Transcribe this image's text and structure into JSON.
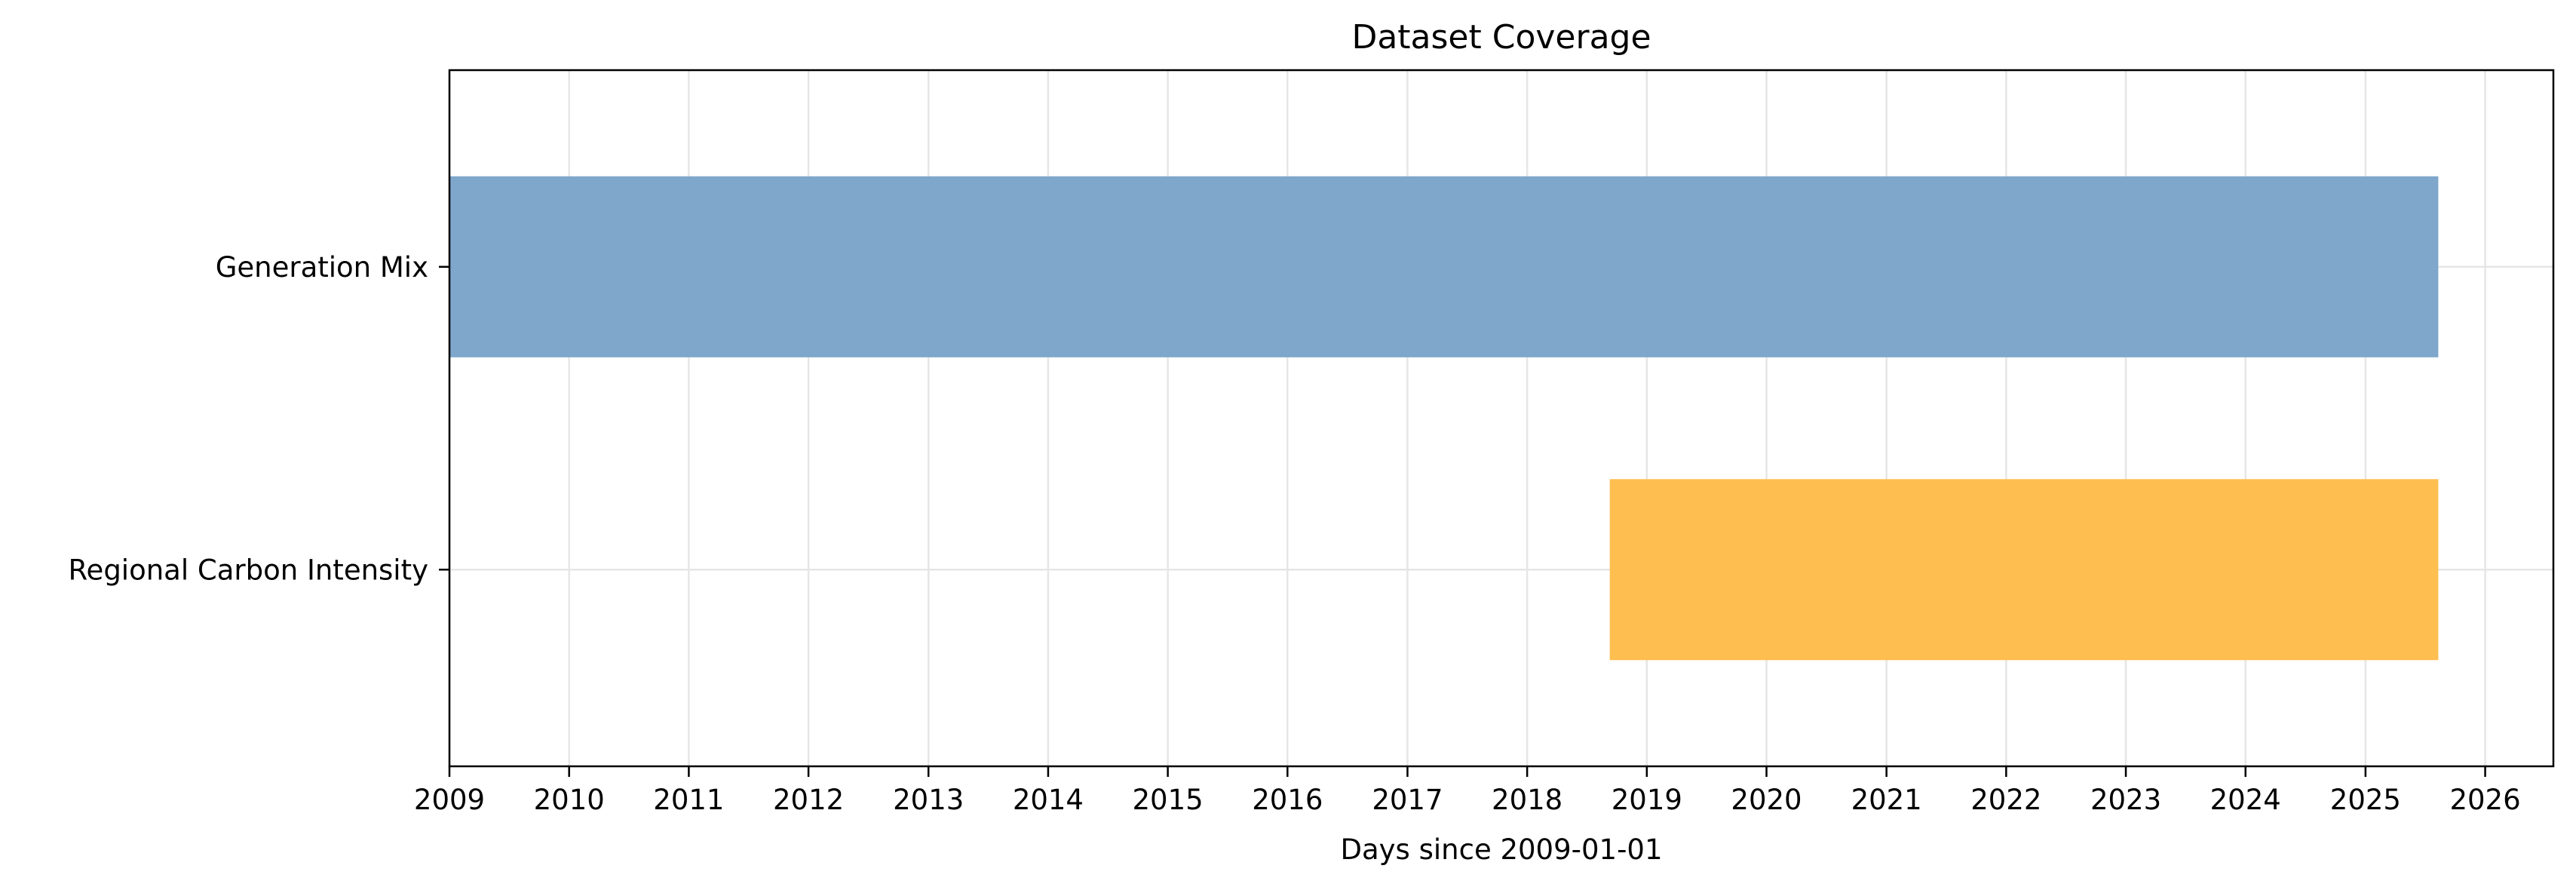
{
  "chart_data": {
    "type": "bar",
    "orientation": "horizontal",
    "title": "Dataset Coverage",
    "xlabel": "Days since 2009-01-01",
    "ylabel": "",
    "x_axis_type": "date",
    "xlim": [
      "2009-01-01",
      "2026-07-28"
    ],
    "x_ticks": [
      "2009",
      "2010",
      "2011",
      "2012",
      "2013",
      "2014",
      "2015",
      "2016",
      "2017",
      "2018",
      "2019",
      "2020",
      "2021",
      "2022",
      "2023",
      "2024",
      "2025",
      "2026"
    ],
    "grid": true,
    "legend": "none",
    "categories": [
      "Regional Carbon Intensity",
      "Generation Mix"
    ],
    "series": [
      {
        "values": [
          {
            "category": "Regional Carbon Intensity",
            "start": "2018-09-10",
            "end": "2025-08-11",
            "color": "#ffbe50"
          },
          {
            "category": "Generation Mix",
            "start": "2009-01-01",
            "end": "2025-08-11",
            "color": "#7ea7cb"
          }
        ]
      }
    ]
  }
}
